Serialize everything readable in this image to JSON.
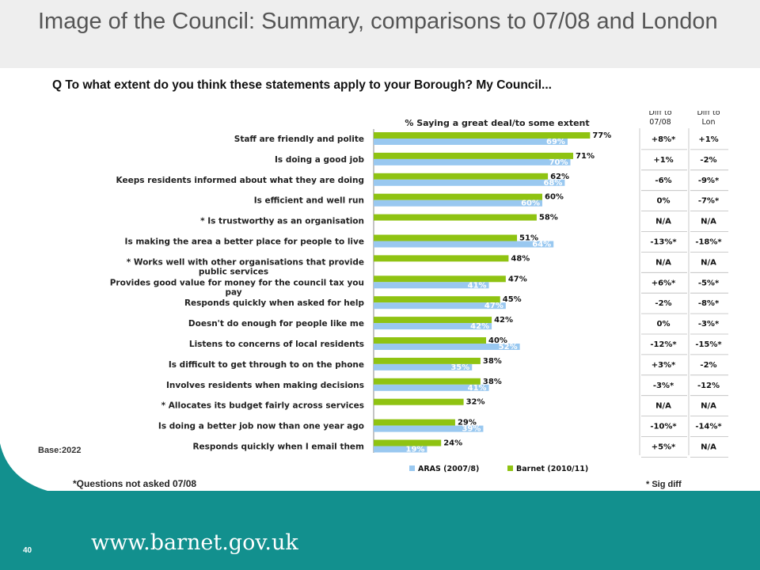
{
  "slide": {
    "title": "Image of the Council: Summary, comparisons to 07/08 and London",
    "question": "Q To what extent do you think these statements apply to your Borough? My Council...",
    "base_label": "Base:2022",
    "note": "*Questions not asked 07/08",
    "sig_note": "* Sig diff",
    "footer_url": "www.barnet.gov.uk",
    "page_number": "40"
  },
  "colors": {
    "aras": "#99c8f0",
    "barnet": "#8fc312",
    "teal": "#12908e"
  },
  "chart_data": {
    "type": "bar",
    "orientation": "horizontal",
    "title": "% Saying a great deal/to some extent",
    "categories": [
      "Staff are friendly and polite",
      "Is doing a good job",
      "Keeps residents informed about what they are doing",
      "Is efficient and well run",
      "* Is trustworthy as an organisation",
      "Is making the area a better place for people to live",
      "* Works well with other organisations that provide public services",
      "Provides good value for money for the council tax you pay",
      "Responds quickly when asked for help",
      "Doesn't do enough for people like me",
      "Listens to concerns of local residents",
      "Is difficult to get through to on the phone",
      "Involves residents when making decisions",
      "* Allocates its budget fairly across services",
      "Is doing a better job now than one year ago",
      "Responds quickly when I email them"
    ],
    "series": [
      {
        "name": "Barnet (2010/11)",
        "values": [
          77,
          71,
          62,
          60,
          58,
          51,
          48,
          47,
          45,
          42,
          40,
          38,
          38,
          32,
          29,
          24
        ]
      },
      {
        "name": "ARAS (2007/8)",
        "values": [
          69,
          70,
          68,
          60,
          null,
          64,
          null,
          41,
          47,
          42,
          52,
          35,
          41,
          null,
          39,
          19
        ]
      }
    ],
    "legend": [
      "ARAS (2007/8)",
      "Barnet (2010/11)"
    ],
    "legend_placement": "bottom",
    "xlim": [
      0,
      100
    ],
    "columns": {
      "diff_0708_header": "Diff to 07/08",
      "diff_lon_header": "Diff to Lon",
      "diff_0708": [
        "+8%*",
        "+1%",
        "-6%",
        "0%",
        "N/A",
        "-13%*",
        "N/A",
        "+6%*",
        "-2%",
        "0%",
        "-12%*",
        "+3%*",
        "-3%*",
        "N/A",
        "-10%*",
        "+5%*"
      ],
      "diff_lon": [
        "+1%",
        "-2%",
        "-9%*",
        "-7%*",
        "N/A",
        "-18%*",
        "N/A",
        "-5%*",
        "-8%*",
        "-3%*",
        "-15%*",
        "-2%",
        "-12%",
        "N/A",
        "-14%*",
        "N/A"
      ]
    }
  }
}
